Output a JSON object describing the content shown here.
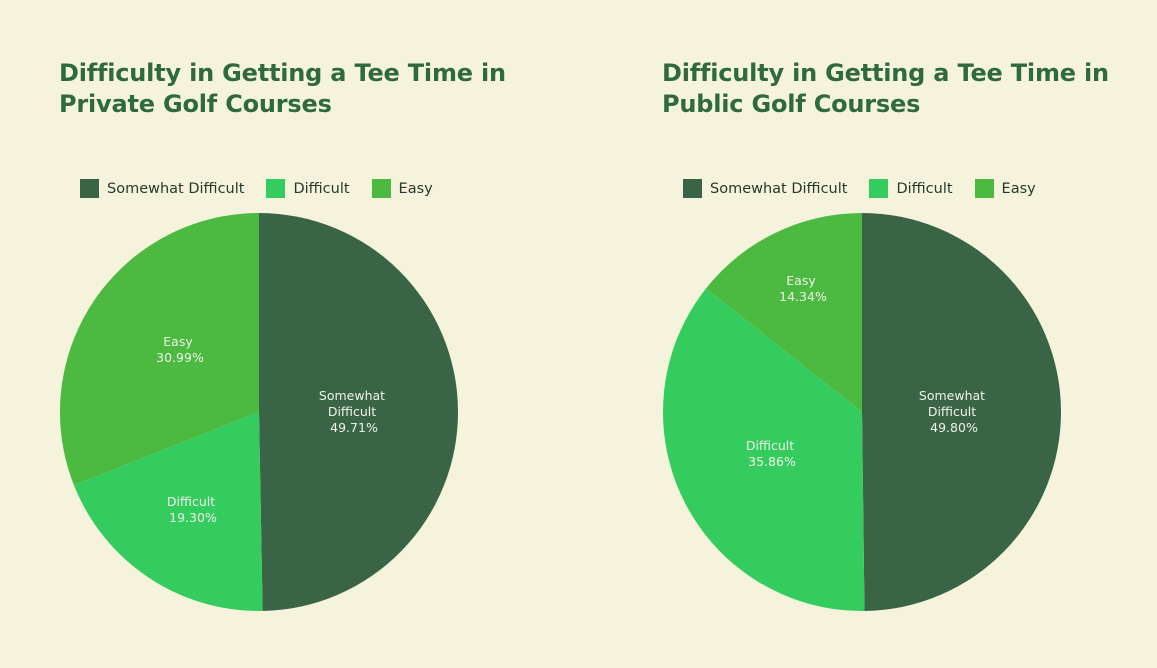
{
  "colors": {
    "background": "#f5f3dc",
    "title": "#2f6a3c",
    "somewhat_difficult": "#3a6446",
    "difficult": "#35cc5f",
    "easy": "#4cb941"
  },
  "charts": [
    {
      "title_line1": "Difficulty in Getting a Tee Time in",
      "title_line2": "Private Golf Courses",
      "legend": [
        "Somewhat Difficult",
        "Difficult",
        "Easy"
      ],
      "slices": [
        {
          "name": "Somewhat Difficult",
          "label_line1": "Somewhat",
          "label_line2": "Difficult",
          "value_text": "49.71%"
        },
        {
          "name": "Difficult",
          "label_line1": "Difficult",
          "value_text": "19.30%"
        },
        {
          "name": "Easy",
          "label_line1": "Easy",
          "value_text": "30.99%"
        }
      ]
    },
    {
      "title_line1": "Difficulty in Getting a Tee Time in",
      "title_line2": "Public Golf Courses",
      "legend": [
        "Somewhat Difficult",
        "Difficult",
        "Easy"
      ],
      "slices": [
        {
          "name": "Somewhat Difficult",
          "label_line1": "Somewhat",
          "label_line2": "Difficult",
          "value_text": "49.80%"
        },
        {
          "name": "Difficult",
          "label_line1": "Difficult",
          "value_text": "35.86%"
        },
        {
          "name": "Easy",
          "label_line1": "Easy",
          "value_text": "14.34%"
        }
      ]
    }
  ],
  "chart_data": [
    {
      "type": "pie",
      "title": "Difficulty in Getting a Tee Time in Private Golf Courses",
      "categories": [
        "Somewhat Difficult",
        "Difficult",
        "Easy"
      ],
      "values": [
        49.71,
        19.3,
        30.99
      ],
      "colors": [
        "#3a6446",
        "#35cc5f",
        "#4cb941"
      ],
      "legend_position": "top",
      "start_angle": "12 o'clock, clockwise"
    },
    {
      "type": "pie",
      "title": "Difficulty in Getting a Tee Time in Public Golf Courses",
      "categories": [
        "Somewhat Difficult",
        "Difficult",
        "Easy"
      ],
      "values": [
        49.8,
        35.86,
        14.34
      ],
      "colors": [
        "#3a6446",
        "#35cc5f",
        "#4cb941"
      ],
      "legend_position": "top",
      "start_angle": "12 o'clock, clockwise"
    }
  ]
}
